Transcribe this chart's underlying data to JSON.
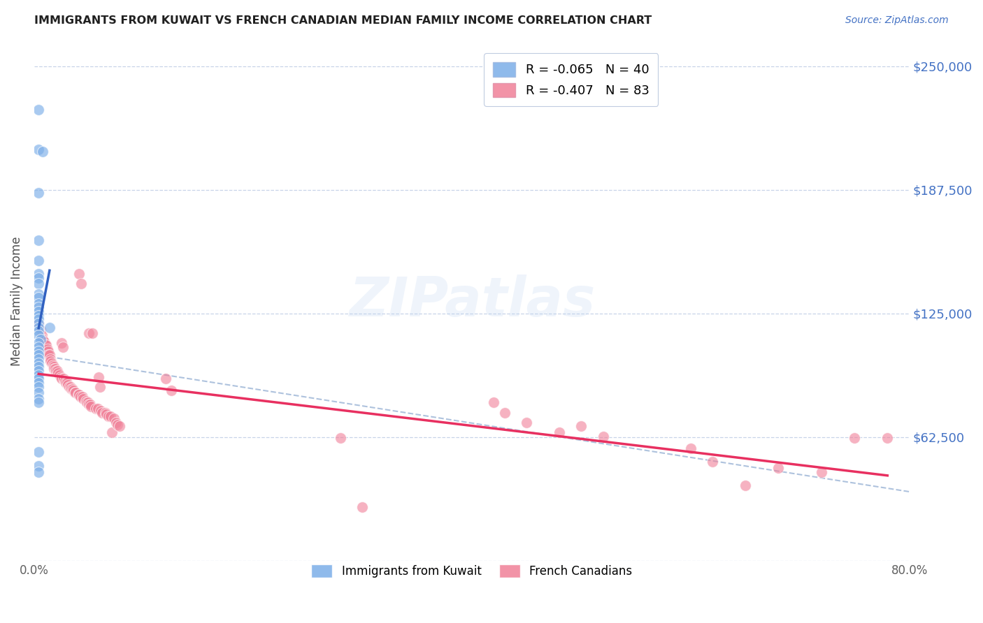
{
  "title": "IMMIGRANTS FROM KUWAIT VS FRENCH CANADIAN MEDIAN FAMILY INCOME CORRELATION CHART",
  "source": "Source: ZipAtlas.com",
  "ylabel": "Median Family Income",
  "xlim": [
    0.0,
    0.8
  ],
  "ylim": [
    0,
    262500
  ],
  "yticks": [
    0,
    62500,
    125000,
    187500,
    250000
  ],
  "ytick_labels": [
    "",
    "$62,500",
    "$125,000",
    "$187,500",
    "$250,000"
  ],
  "xtick_labels": [
    "0.0%",
    "80.0%"
  ],
  "kuwait_color": "#7baee8",
  "french_color": "#f08098",
  "kuwait_line_color": "#3060c0",
  "french_line_color": "#e83060",
  "dash_line_color": "#a0b8d8",
  "background_color": "#ffffff",
  "grid_color": "#c8d4e8",
  "watermark": "ZIPatlas",
  "ylabel_color": "#505050",
  "ytick_color": "#4472c4",
  "title_color": "#202020",
  "kuwait_points": [
    [
      0.004,
      228000
    ],
    [
      0.004,
      208000
    ],
    [
      0.008,
      207000
    ],
    [
      0.004,
      186000
    ],
    [
      0.004,
      162000
    ],
    [
      0.004,
      152000
    ],
    [
      0.004,
      145000
    ],
    [
      0.004,
      143000
    ],
    [
      0.004,
      140000
    ],
    [
      0.004,
      135000
    ],
    [
      0.004,
      133000
    ],
    [
      0.004,
      130000
    ],
    [
      0.004,
      128000
    ],
    [
      0.004,
      126000
    ],
    [
      0.004,
      124000
    ],
    [
      0.004,
      122000
    ],
    [
      0.004,
      120000
    ],
    [
      0.004,
      118000
    ],
    [
      0.004,
      116000
    ],
    [
      0.004,
      114000
    ],
    [
      0.006,
      112000
    ],
    [
      0.004,
      110000
    ],
    [
      0.004,
      108000
    ],
    [
      0.004,
      106000
    ],
    [
      0.004,
      104000
    ],
    [
      0.004,
      102000
    ],
    [
      0.004,
      100000
    ],
    [
      0.004,
      98000
    ],
    [
      0.004,
      96000
    ],
    [
      0.004,
      94000
    ],
    [
      0.004,
      92000
    ],
    [
      0.004,
      90000
    ],
    [
      0.004,
      88000
    ],
    [
      0.004,
      85000
    ],
    [
      0.004,
      82000
    ],
    [
      0.014,
      118000
    ],
    [
      0.004,
      80000
    ],
    [
      0.004,
      55000
    ],
    [
      0.004,
      48000
    ],
    [
      0.004,
      45000
    ]
  ],
  "french_points": [
    [
      0.004,
      120000
    ],
    [
      0.006,
      117000
    ],
    [
      0.007,
      114000
    ],
    [
      0.008,
      112000
    ],
    [
      0.009,
      111000
    ],
    [
      0.01,
      109000
    ],
    [
      0.011,
      109000
    ],
    [
      0.012,
      107000
    ],
    [
      0.013,
      106000
    ],
    [
      0.013,
      104000
    ],
    [
      0.014,
      104000
    ],
    [
      0.015,
      102000
    ],
    [
      0.015,
      101000
    ],
    [
      0.016,
      100000
    ],
    [
      0.017,
      99000
    ],
    [
      0.018,
      98000
    ],
    [
      0.018,
      97000
    ],
    [
      0.019,
      97000
    ],
    [
      0.02,
      96000
    ],
    [
      0.021,
      96000
    ],
    [
      0.022,
      95000
    ],
    [
      0.023,
      94000
    ],
    [
      0.024,
      93000
    ],
    [
      0.025,
      92000
    ],
    [
      0.025,
      110000
    ],
    [
      0.026,
      108000
    ],
    [
      0.027,
      92000
    ],
    [
      0.028,
      91000
    ],
    [
      0.029,
      90000
    ],
    [
      0.03,
      90000
    ],
    [
      0.031,
      89000
    ],
    [
      0.032,
      88000
    ],
    [
      0.033,
      88000
    ],
    [
      0.034,
      87000
    ],
    [
      0.035,
      87000
    ],
    [
      0.036,
      86000
    ],
    [
      0.037,
      85000
    ],
    [
      0.038,
      85000
    ],
    [
      0.04,
      84000
    ],
    [
      0.041,
      84000
    ],
    [
      0.042,
      83000
    ],
    [
      0.041,
      145000
    ],
    [
      0.043,
      140000
    ],
    [
      0.044,
      83000
    ],
    [
      0.045,
      82000
    ],
    [
      0.047,
      81000
    ],
    [
      0.048,
      80000
    ],
    [
      0.049,
      80000
    ],
    [
      0.05,
      79000
    ],
    [
      0.051,
      79000
    ],
    [
      0.052,
      78000
    ],
    [
      0.05,
      115000
    ],
    [
      0.053,
      115000
    ],
    [
      0.056,
      77000
    ],
    [
      0.058,
      77000
    ],
    [
      0.059,
      93000
    ],
    [
      0.06,
      88000
    ],
    [
      0.061,
      76000
    ],
    [
      0.062,
      75000
    ],
    [
      0.065,
      75000
    ],
    [
      0.066,
      74000
    ],
    [
      0.068,
      73000
    ],
    [
      0.07,
      73000
    ],
    [
      0.071,
      65000
    ],
    [
      0.073,
      72000
    ],
    [
      0.075,
      70000
    ],
    [
      0.076,
      69000
    ],
    [
      0.078,
      68000
    ],
    [
      0.12,
      92000
    ],
    [
      0.125,
      86000
    ],
    [
      0.28,
      62000
    ],
    [
      0.3,
      27000
    ],
    [
      0.42,
      80000
    ],
    [
      0.43,
      75000
    ],
    [
      0.45,
      70000
    ],
    [
      0.48,
      65000
    ],
    [
      0.5,
      68000
    ],
    [
      0.52,
      63000
    ],
    [
      0.6,
      57000
    ],
    [
      0.62,
      50000
    ],
    [
      0.65,
      38000
    ],
    [
      0.68,
      47000
    ],
    [
      0.72,
      45000
    ],
    [
      0.75,
      62000
    ],
    [
      0.78,
      62000
    ]
  ],
  "kuwait_line_x": [
    0.004,
    0.014
  ],
  "french_line_x_start": 0.004,
  "french_line_x_end": 0.78,
  "dash_line_x_start": 0.004,
  "dash_line_x_end": 0.8
}
